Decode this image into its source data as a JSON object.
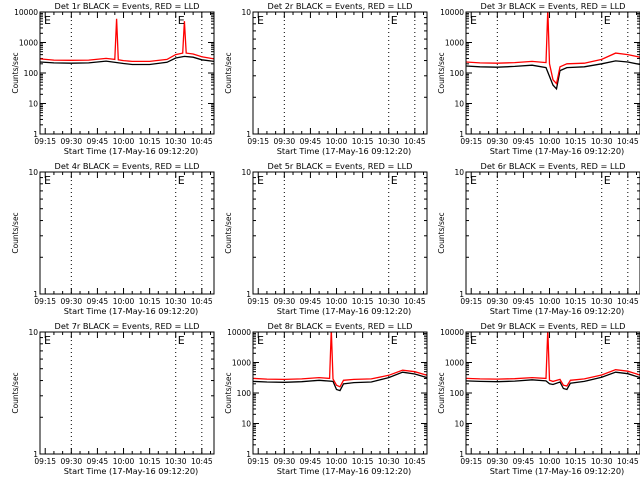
{
  "figure": {
    "colors": {
      "events": "#000000",
      "lld": "#ff0000",
      "axes": "#000000",
      "background": "#ffffff"
    }
  },
  "chart_data": [
    {
      "type": "line",
      "title": "Det 1r BLACK = Events, RED = LLD",
      "xlabel": "Start Time (17-May-16 09:12:20)",
      "ylabel": "Counts/sec",
      "xticks": [
        "09:15",
        "09:30",
        "09:45",
        "10:00",
        "10:15",
        "10:30",
        "10:45"
      ],
      "xlim": [
        "09:12",
        "10:52"
      ],
      "ylim": [
        1,
        10000
      ],
      "yscale": "log",
      "yticks": [
        "1",
        "10",
        "100",
        "1000",
        "10000"
      ],
      "vlines": [
        "09:30",
        "10:30",
        "10:45"
      ],
      "annotation": "E",
      "series": [
        {
          "name": "Events",
          "color": "#000000",
          "x": [
            "09:12",
            "09:20",
            "09:30",
            "09:40",
            "09:50",
            "10:00",
            "10:05",
            "10:15",
            "10:25",
            "10:30",
            "10:35",
            "10:40",
            "10:45",
            "10:52"
          ],
          "values": [
            230,
            215,
            210,
            215,
            245,
            205,
            190,
            190,
            225,
            310,
            350,
            330,
            270,
            240
          ]
        },
        {
          "name": "LLD",
          "color": "#ff0000",
          "x": [
            "09:12",
            "09:20",
            "09:30",
            "09:40",
            "09:50",
            "09:55",
            "09:56",
            "09:57",
            "10:00",
            "10:05",
            "10:15",
            "10:25",
            "10:30",
            "10:34",
            "10:35",
            "10:36",
            "10:40",
            "10:45",
            "10:52"
          ],
          "values": [
            290,
            265,
            260,
            265,
            300,
            280,
            6000,
            270,
            255,
            240,
            240,
            280,
            400,
            450,
            5000,
            450,
            420,
            340,
            290
          ]
        }
      ]
    },
    {
      "type": "line",
      "title": "Det 2r BLACK = Events, RED = LLD",
      "xlabel": "Start Time (17-May-16 09:12:20)",
      "ylabel": "Counts/sec",
      "xticks": [
        "09:15",
        "09:30",
        "09:45",
        "10:00",
        "10:15",
        "10:30",
        "10:45"
      ],
      "xlim": [
        "09:12",
        "10:52"
      ],
      "ylim": [
        1,
        10
      ],
      "yscale": "log",
      "yticks": [
        "1",
        "10"
      ],
      "vlines": [
        "09:30",
        "10:30",
        "10:45"
      ],
      "annotation": "E",
      "series": []
    },
    {
      "type": "line",
      "title": "Det 3r BLACK = Events, RED = LLD",
      "xlabel": "Start Time (17-May-16 09:12:20)",
      "ylabel": "Counts/sec",
      "xticks": [
        "09:15",
        "09:30",
        "09:45",
        "10:00",
        "10:15",
        "10:30",
        "10:45"
      ],
      "xlim": [
        "09:12",
        "10:52"
      ],
      "ylim": [
        1,
        10000
      ],
      "yscale": "log",
      "yticks": [
        "1",
        "10",
        "100",
        "1000",
        "10000"
      ],
      "vlines": [
        "09:30",
        "10:30",
        "10:45"
      ],
      "annotation": "E",
      "series": [
        {
          "name": "Events",
          "color": "#000000",
          "x": [
            "09:12",
            "09:20",
            "09:30",
            "09:40",
            "09:50",
            "09:58",
            "10:02",
            "10:04",
            "10:06",
            "10:10",
            "10:20",
            "10:30",
            "10:38",
            "10:45",
            "10:52"
          ],
          "values": [
            170,
            160,
            155,
            165,
            180,
            150,
            40,
            30,
            120,
            150,
            160,
            200,
            250,
            230,
            190
          ]
        },
        {
          "name": "LLD",
          "color": "#ff0000",
          "x": [
            "09:12",
            "09:20",
            "09:30",
            "09:40",
            "09:50",
            "09:58",
            "09:59",
            "10:00",
            "10:02",
            "10:04",
            "10:06",
            "10:10",
            "10:20",
            "10:30",
            "10:38",
            "10:45",
            "10:52"
          ],
          "values": [
            230,
            215,
            210,
            220,
            240,
            220,
            12000,
            200,
            60,
            45,
            160,
            200,
            210,
            280,
            450,
            400,
            330
          ]
        }
      ]
    },
    {
      "type": "line",
      "title": "Det 4r BLACK = Events, RED = LLD",
      "xlabel": "Start Time (17-May-16 09:12:20)",
      "ylabel": "Counts/sec",
      "xticks": [
        "09:15",
        "09:30",
        "09:45",
        "10:00",
        "10:15",
        "10:30",
        "10:45"
      ],
      "xlim": [
        "09:12",
        "10:52"
      ],
      "ylim": [
        1,
        10
      ],
      "yscale": "log",
      "yticks": [
        "1",
        "10"
      ],
      "vlines": [
        "09:30",
        "10:30",
        "10:45"
      ],
      "annotation": "E",
      "series": []
    },
    {
      "type": "line",
      "title": "Det 5r BLACK = Events, RED = LLD",
      "xlabel": "Start Time (17-May-16 09:12:20)",
      "ylabel": "Counts/sec",
      "xticks": [
        "09:15",
        "09:30",
        "09:45",
        "10:00",
        "10:15",
        "10:30",
        "10:45"
      ],
      "xlim": [
        "09:12",
        "10:52"
      ],
      "ylim": [
        1,
        10
      ],
      "yscale": "log",
      "yticks": [
        "1",
        "10"
      ],
      "vlines": [
        "09:30",
        "10:30",
        "10:45"
      ],
      "annotation": "E",
      "series": []
    },
    {
      "type": "line",
      "title": "Det 6r BLACK = Events, RED = LLD",
      "xlabel": "Start Time (17-May-16 09:12:20)",
      "ylabel": "Counts/sec",
      "xticks": [
        "09:15",
        "09:30",
        "09:45",
        "10:00",
        "10:15",
        "10:30",
        "10:45"
      ],
      "xlim": [
        "09:12",
        "10:52"
      ],
      "ylim": [
        1,
        10
      ],
      "yscale": "log",
      "yticks": [
        "1",
        "10"
      ],
      "vlines": [
        "09:30",
        "10:30",
        "10:45"
      ],
      "annotation": "E",
      "series": []
    },
    {
      "type": "line",
      "title": "Det 7r BLACK = Events, RED = LLD",
      "xlabel": "Start Time (17-May-16 09:12:20)",
      "ylabel": "Counts/sec",
      "xticks": [
        "09:15",
        "09:30",
        "09:45",
        "10:00",
        "10:15",
        "10:30",
        "10:45"
      ],
      "xlim": [
        "09:12",
        "10:52"
      ],
      "ylim": [
        1,
        10
      ],
      "yscale": "log",
      "yticks": [
        "1",
        "10"
      ],
      "vlines": [
        "09:30",
        "10:30",
        "10:45"
      ],
      "annotation": "E",
      "series": []
    },
    {
      "type": "line",
      "title": "Det 8r BLACK = Events, RED = LLD",
      "xlabel": "Start Time (17-May-16 09:12:20)",
      "ylabel": "Counts/sec",
      "xticks": [
        "09:15",
        "09:30",
        "09:45",
        "10:00",
        "10:15",
        "10:30",
        "10:45"
      ],
      "xlim": [
        "09:12",
        "10:52"
      ],
      "ylim": [
        1,
        10000
      ],
      "yscale": "log",
      "yticks": [
        "1",
        "10",
        "100",
        "1000",
        "10000"
      ],
      "vlines": [
        "09:30",
        "10:30",
        "10:45"
      ],
      "annotation": "E",
      "series": [
        {
          "name": "Events",
          "color": "#000000",
          "x": [
            "09:12",
            "09:20",
            "09:30",
            "09:40",
            "09:50",
            "09:58",
            "10:00",
            "10:02",
            "10:04",
            "10:10",
            "10:20",
            "10:30",
            "10:38",
            "10:45",
            "10:52"
          ],
          "values": [
            240,
            230,
            225,
            235,
            260,
            240,
            130,
            120,
            200,
            220,
            230,
            320,
            480,
            420,
            320
          ]
        },
        {
          "name": "LLD",
          "color": "#ff0000",
          "x": [
            "09:12",
            "09:20",
            "09:30",
            "09:40",
            "09:50",
            "09:56",
            "09:57",
            "09:58",
            "10:00",
            "10:02",
            "10:04",
            "10:10",
            "10:20",
            "10:30",
            "10:38",
            "10:45",
            "10:52"
          ],
          "values": [
            300,
            285,
            280,
            290,
            320,
            300,
            12000,
            290,
            180,
            160,
            260,
            280,
            290,
            380,
            560,
            500,
            380
          ]
        }
      ]
    },
    {
      "type": "line",
      "title": "Det 9r BLACK = Events, RED = LLD",
      "xlabel": "Start Time (17-May-16 09:12:20)",
      "ylabel": "Counts/sec",
      "xticks": [
        "09:15",
        "09:30",
        "09:45",
        "10:00",
        "10:15",
        "10:30",
        "10:45"
      ],
      "xlim": [
        "09:12",
        "10:52"
      ],
      "ylim": [
        1,
        10000
      ],
      "yscale": "log",
      "yticks": [
        "1",
        "10",
        "100",
        "1000",
        "10000"
      ],
      "vlines": [
        "09:30",
        "10:30",
        "10:45"
      ],
      "annotation": "E",
      "series": [
        {
          "name": "Events",
          "color": "#000000",
          "x": [
            "09:12",
            "09:20",
            "09:30",
            "09:40",
            "09:50",
            "09:58",
            "10:00",
            "10:02",
            "10:06",
            "10:08",
            "10:10",
            "10:12",
            "10:20",
            "10:30",
            "10:38",
            "10:45",
            "10:52"
          ],
          "values": [
            250,
            240,
            235,
            245,
            270,
            250,
            200,
            190,
            230,
            140,
            130,
            210,
            240,
            330,
            480,
            430,
            320
          ]
        },
        {
          "name": "LLD",
          "color": "#ff0000",
          "x": [
            "09:12",
            "09:20",
            "09:30",
            "09:40",
            "09:50",
            "09:58",
            "09:59",
            "10:00",
            "10:02",
            "10:06",
            "10:08",
            "10:10",
            "10:12",
            "10:20",
            "10:30",
            "10:38",
            "10:45",
            "10:52"
          ],
          "values": [
            300,
            290,
            285,
            295,
            320,
            300,
            12000,
            260,
            240,
            280,
            180,
            170,
            260,
            290,
            390,
            580,
            520,
            390
          ]
        }
      ]
    }
  ]
}
